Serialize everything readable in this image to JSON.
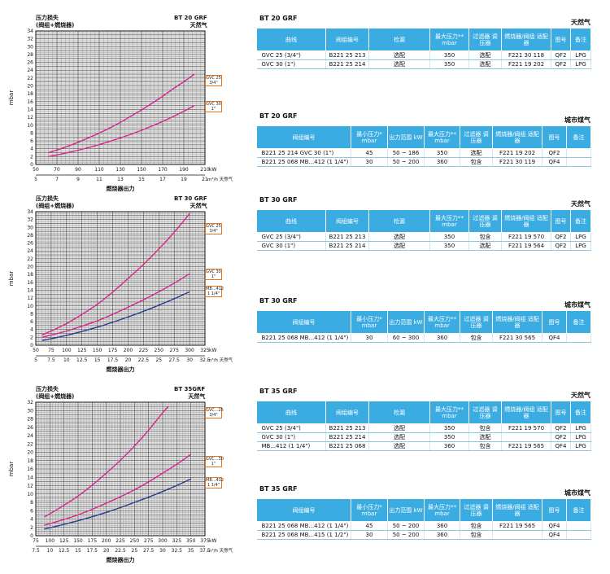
{
  "charts": [
    {
      "ylabel_title": "压力损失",
      "ylabel_title2": "(阀组+燃烧器)",
      "model": "BT 20 GRF",
      "gas": "天然气",
      "ylabel": "mbar",
      "xlabel": "燃烧器出力",
      "x_unit_kw": "kW",
      "x_unit_m3": "m³/h 天然气",
      "annotations": [
        "GVC 25 3/4\"",
        "GVC 30 1\""
      ],
      "chart_data": {
        "type": "line",
        "xlabel": "燃烧器出力",
        "ylabel": "mbar",
        "x_ticks_kw": [
          50,
          70,
          90,
          110,
          130,
          150,
          170,
          190,
          210
        ],
        "x_ticks_m3": [
          5,
          7,
          9,
          11,
          13,
          15,
          17,
          19,
          21
        ],
        "xlim": [
          50,
          210
        ],
        "ylim": [
          0,
          34
        ],
        "y_ticks": [
          0,
          2,
          4,
          6,
          8,
          10,
          12,
          14,
          16,
          18,
          20,
          22,
          24,
          26,
          28,
          30,
          32,
          34
        ],
        "grid": true,
        "series": [
          {
            "name": "GVC 25 3/4\"",
            "color": "#d6258c",
            "x": [
              62,
              80,
              100,
              120,
              140,
              160,
              180,
              200
            ],
            "values": [
              3,
              4.6,
              6.8,
              9.3,
              12.3,
              15.6,
              19.3,
              23
            ]
          },
          {
            "name": "GVC 30 1\"",
            "color": "#d6258c",
            "x": [
              62,
              80,
              100,
              120,
              140,
              160,
              180,
              200
            ],
            "values": [
              2,
              3,
              4.3,
              5.9,
              7.7,
              9.8,
              12.2,
              15
            ]
          }
        ]
      }
    },
    {
      "ylabel_title": "压力损失",
      "ylabel_title2": "(阀组+燃烧器)",
      "model": "BT 30 GRF",
      "gas": "天然气",
      "ylabel": "mbar",
      "xlabel": "燃烧器出力",
      "x_unit_kw": "kW",
      "x_unit_m3": "m³/h 天然气",
      "annotations": [
        "GVC 25 3/4\"",
        "GVC 30 1\"",
        "MB...412 1 1/4\""
      ],
      "chart_data": {
        "type": "line",
        "xlabel": "燃烧器出力",
        "ylabel": "mbar",
        "x_ticks_kw": [
          50,
          75,
          100,
          125,
          150,
          175,
          200,
          225,
          250,
          275,
          300,
          325
        ],
        "x_ticks_m3": [
          5,
          7.5,
          10,
          12.5,
          15,
          17.5,
          20,
          22.5,
          25,
          27.5,
          30,
          32.5
        ],
        "xlim": [
          50,
          325
        ],
        "ylim": [
          0,
          34
        ],
        "y_ticks": [
          0,
          2,
          4,
          6,
          8,
          10,
          12,
          14,
          16,
          18,
          20,
          22,
          24,
          26,
          28,
          30,
          32,
          34
        ],
        "grid": true,
        "series": [
          {
            "name": "GVC 25 3/4\"",
            "color": "#d6258c",
            "x": [
              60,
              100,
              150,
              200,
              250,
              300
            ],
            "values": [
              2.6,
              5.5,
              10.4,
              17,
              24.5,
              33.5
            ]
          },
          {
            "name": "GVC 30 1\"",
            "color": "#d6258c",
            "x": [
              60,
              100,
              150,
              200,
              250,
              300
            ],
            "values": [
              2,
              3.6,
              6.2,
              9.7,
              13.6,
              18.2
            ]
          },
          {
            "name": "MB...412 1 1/4\"",
            "color": "#2b3a8f",
            "x": [
              60,
              100,
              150,
              200,
              250,
              300
            ],
            "values": [
              1.2,
              2.5,
              4.6,
              7.2,
              10.2,
              13.6
            ]
          }
        ]
      }
    },
    {
      "ylabel_title": "压力损失",
      "ylabel_title2": "(阀组+燃烧器)",
      "model": "BT 35GRF",
      "gas": "天然气",
      "ylabel": "mbar",
      "xlabel": "燃烧器出力",
      "x_unit_kw": "kW",
      "x_unit_m3": "m³/h 天然气",
      "annotations": [
        "GVC...25 3/4\"",
        "GVC...30 1\"",
        "MB...412 1 1/4\""
      ],
      "chart_data": {
        "type": "line",
        "xlabel": "燃烧器出力",
        "ylabel": "mbar",
        "x_ticks_kw": [
          75,
          100,
          125,
          150,
          175,
          200,
          225,
          250,
          275,
          300,
          325,
          350,
          375
        ],
        "x_ticks_m3": [
          7.5,
          10,
          12.5,
          15,
          17.5,
          20,
          22.5,
          25,
          27.5,
          30,
          32.5,
          35,
          37.5
        ],
        "xlim": [
          75,
          375
        ],
        "ylim": [
          0,
          32
        ],
        "y_ticks": [
          0,
          2,
          4,
          6,
          8,
          10,
          12,
          14,
          16,
          18,
          20,
          22,
          24,
          26,
          28,
          30,
          32
        ],
        "grid": true,
        "series": [
          {
            "name": "GVC...25 3/4\"",
            "color": "#d6258c",
            "x": [
              90,
              150,
              200,
              250,
              300,
              310
            ],
            "values": [
              4.5,
              9.5,
              15,
              21.5,
              29.5,
              31
            ]
          },
          {
            "name": "GVC...30 1\"",
            "color": "#d6258c",
            "x": [
              90,
              150,
              200,
              250,
              300,
              350
            ],
            "values": [
              2.5,
              5,
              7.8,
              11,
              15,
              19.5
            ]
          },
          {
            "name": "MB...412 1 1/4\"",
            "color": "#2b3a8f",
            "x": [
              90,
              150,
              200,
              250,
              300,
              350
            ],
            "values": [
              1.6,
              3.6,
              5.6,
              8,
              10.6,
              13.6
            ]
          }
        ]
      }
    }
  ],
  "blocks": [
    {
      "title": "BT 20 GRF",
      "gas": "天然气",
      "headers": [
        "曲线",
        "阀组编号",
        "检漏",
        "最大压力** mbar",
        "过滤器 调压器",
        "燃烧器/阀组 适配器",
        "图号",
        "备注"
      ],
      "rows": [
        [
          "GVC 25     (3/4\")",
          "B221 25 213",
          "选配",
          "350",
          "选配",
          "F221 30 118",
          "QF2",
          "LPG"
        ],
        [
          "GVC 30     (1\")",
          "B221 25 214",
          "选配",
          "350",
          "选配",
          "F221 19 202",
          "QF2",
          "LPG"
        ]
      ]
    },
    {
      "title": "BT 20 GRF",
      "gas": "城市煤气",
      "headers": [
        "阀组编号",
        "最小压力* mbar",
        "出力范围 kW",
        "最大压力** mbar",
        "过滤器 调压器",
        "燃烧器/阀组 适配器",
        "图号",
        "备注"
      ],
      "rows": [
        [
          "B221 25 214 GVC 30     (1\")",
          "45",
          "50 ~ 186",
          "350",
          "选配",
          "F221 19 202",
          "QF2",
          ""
        ],
        [
          "B221 25 068 MB...412  (1 1/4\")",
          "30",
          "50 ~ 200",
          "360",
          "包含",
          "F221 30 119",
          "QF4",
          ""
        ]
      ]
    },
    {
      "title": "BT 30 GRF",
      "gas": "天然气",
      "headers": [
        "曲线",
        "阀组编号",
        "检漏",
        "最大压力** mbar",
        "过滤器 调压器",
        "燃烧器/阀组 适配器",
        "图号",
        "备注"
      ],
      "rows": [
        [
          "GVC 25     (3/4\")",
          "B221 25 213",
          "选配",
          "350",
          "包含",
          "F221 19 570",
          "QF2",
          "LPG"
        ],
        [
          "GVC 30     (1\")",
          "B221 25 214",
          "选配",
          "350",
          "选配",
          "F221 19 564",
          "QF2",
          "LPG"
        ]
      ]
    },
    {
      "title": "BT 30 GRF",
      "gas": "城市煤气",
      "headers": [
        "阀组编号",
        "最小压力* mbar",
        "出力范围 kW",
        "最大压力** mbar",
        "过滤器 调压器",
        "燃烧器/阀组 适配器",
        "图号",
        "备注"
      ],
      "rows": [
        [
          "B221 25 068 MB...412  (1 1/4\")",
          "30",
          "60 ~ 300",
          "360",
          "包含",
          "F221 30 565",
          "QF4",
          ""
        ]
      ]
    },
    {
      "title": "BT 35 GRF",
      "gas": "天然气",
      "headers": [
        "曲线",
        "阀组编号",
        "检漏",
        "最大压力** mbar",
        "过滤器 调压器",
        "燃烧器/阀组 适配器",
        "图号",
        "备注"
      ],
      "rows": [
        [
          "GVC 25     (3/4\")",
          "B221 25 213",
          "选配",
          "350",
          "包含",
          "F221 19 570",
          "QF2",
          "LPG"
        ],
        [
          "GVC 30     (1\")",
          "B221 25 214",
          "选配",
          "350",
          "选配",
          "",
          "QF2",
          "LPG"
        ],
        [
          "MB...412  (1 1/4\")",
          "B221 25 068",
          "选配",
          "360",
          "包含",
          "F221 19 565",
          "QF4",
          "LPG"
        ]
      ]
    },
    {
      "title": "BT 35 GRF",
      "gas": "城市煤气",
      "headers": [
        "阀组编号",
        "最小压力* mbar",
        "出力范围 kW",
        "最大压力** mbar",
        "过滤器 调压器",
        "燃烧器/阀组 适配器",
        "图号",
        "备注"
      ],
      "rows": [
        [
          "B221 25 068 MB...412  (1 1/4\")",
          "45",
          "50 ~ 200",
          "360",
          "包含",
          "F221 19 565",
          "QF4",
          ""
        ],
        [
          "B221 25 068 MB...415  (1 1/2\")",
          "30",
          "50 ~ 200",
          "360",
          "包含",
          "",
          "QF4",
          ""
        ]
      ]
    }
  ]
}
